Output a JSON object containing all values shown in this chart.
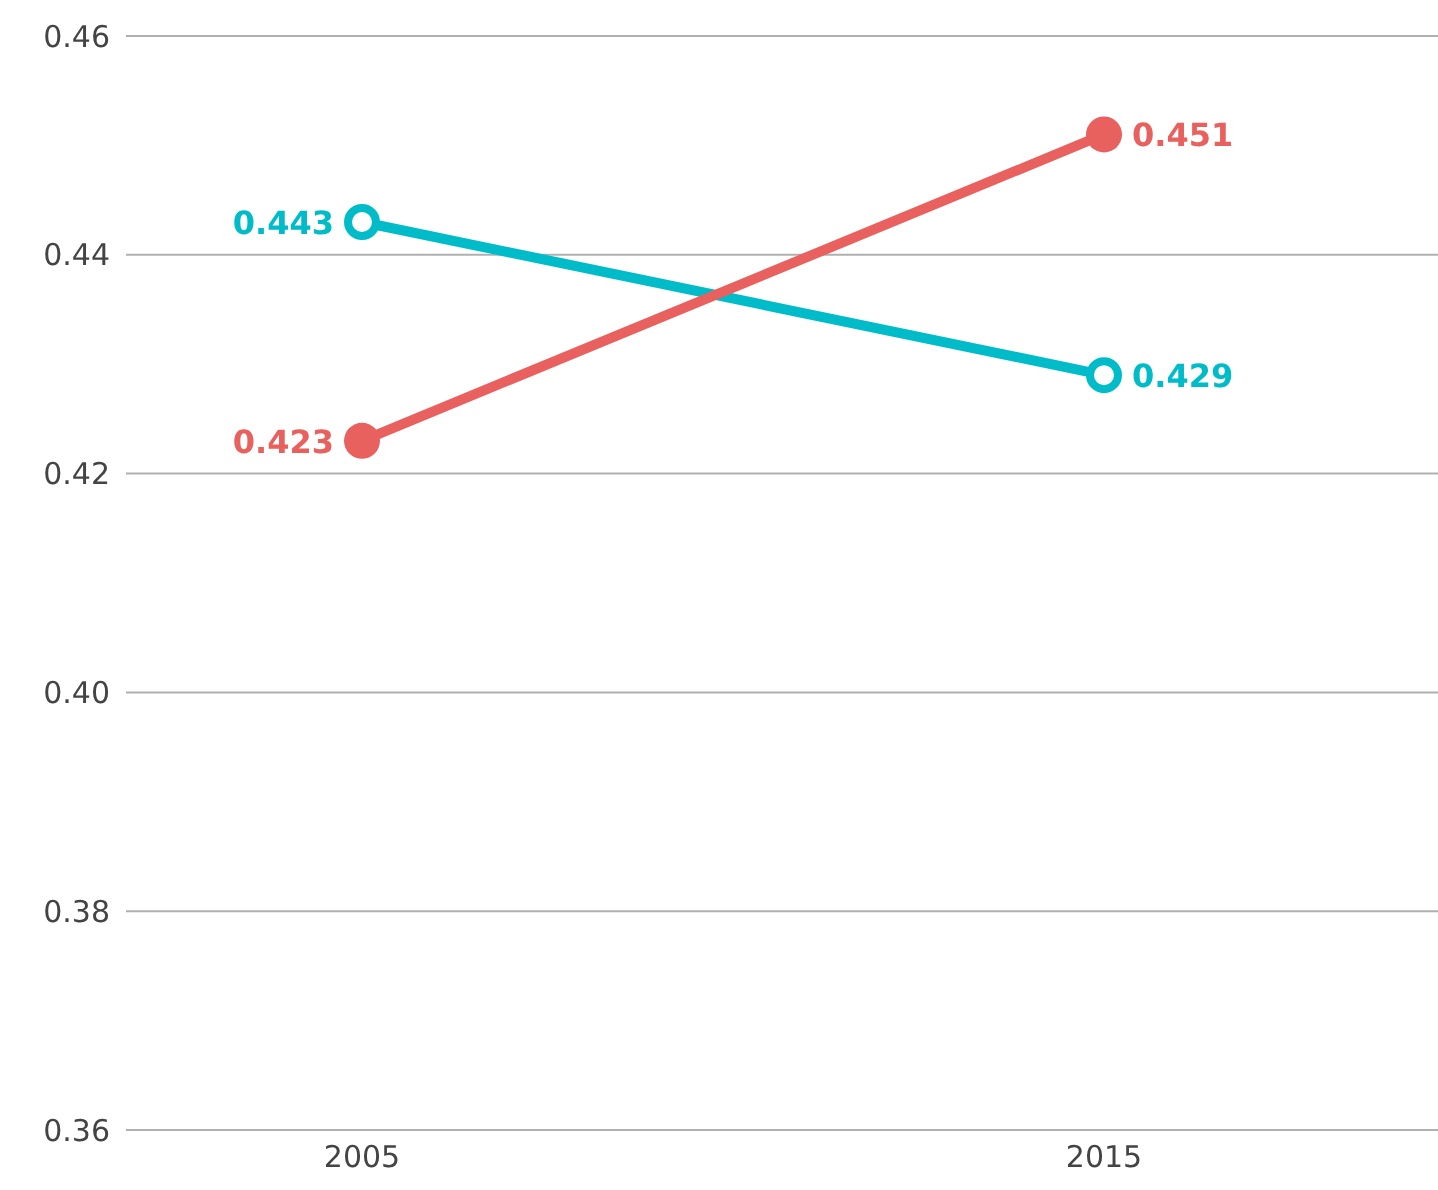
{
  "chart_data": {
    "type": "line",
    "categories": [
      "2005",
      "2015"
    ],
    "series": [
      {
        "color": "#00bcc8",
        "values": [
          0.443,
          0.429
        ]
      },
      {
        "color": "#e8615f",
        "values": [
          0.423,
          0.451
        ]
      }
    ],
    "ylim": [
      0.36,
      0.46
    ],
    "yticks": [
      {
        "value": 0.36,
        "label": "0.36"
      },
      {
        "value": 0.38,
        "label": "0.38"
      },
      {
        "value": 0.4,
        "label": "0.40"
      },
      {
        "value": 0.42,
        "label": "0.42"
      },
      {
        "value": 0.44,
        "label": "0.44"
      },
      {
        "value": 0.46,
        "label": "0.46"
      }
    ],
    "grid": "y",
    "marker": "circle",
    "data_labels": true,
    "legend": false
  }
}
